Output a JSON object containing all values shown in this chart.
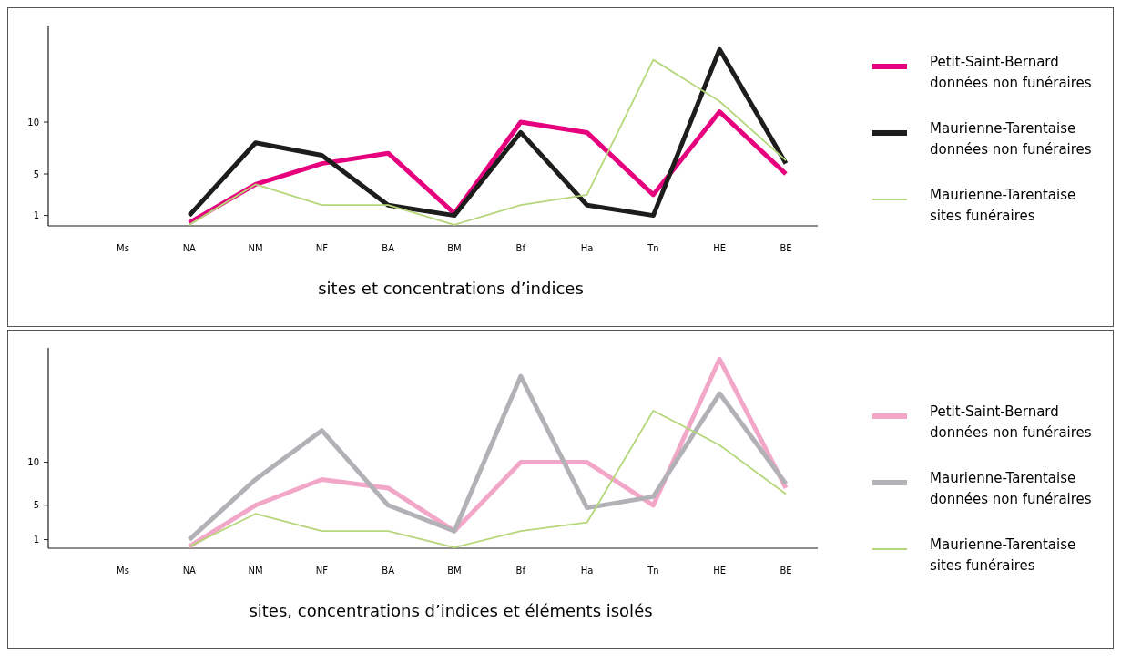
{
  "chart_data": [
    {
      "type": "line",
      "xlabel": "sites et concentrations d’indices",
      "categories": [
        "Ms",
        "NA",
        "NM",
        "NF",
        "BA",
        "BM",
        "Bf",
        "Ha",
        "Tn",
        "HE",
        "BE"
      ],
      "ylim": [
        0,
        19.3
      ],
      "yticks": [
        1,
        5,
        10
      ],
      "grid": false,
      "legend": "right",
      "series": [
        {
          "name": "Petit-Saint-Bernard\ndonnées non funéraires",
          "color": "#e6007e",
          "values": [
            null,
            0.3,
            4,
            6,
            7,
            1.2,
            10,
            9,
            3,
            11,
            5
          ]
        },
        {
          "name": "Maurienne-Tarentaise\ndonnées non funéraires",
          "color": "#1d1d1b",
          "values": [
            null,
            1,
            8,
            6.8,
            2,
            1,
            9,
            2,
            1,
            17,
            6
          ]
        },
        {
          "name": "Maurienne-Tarentaise\nsites funéraires",
          "color": "#b5d77a",
          "values": [
            null,
            0.1,
            4,
            2,
            2,
            0.1,
            2,
            3,
            16,
            12,
            6.3
          ]
        }
      ]
    },
    {
      "type": "line",
      "xlabel": "sites, concentrations d’indices et éléments isolés",
      "categories": [
        "Ms",
        "NA",
        "NM",
        "NF",
        "BA",
        "BM",
        "Bf",
        "Ha",
        "Tn",
        "HE",
        "BE"
      ],
      "ylim": [
        0,
        23.3
      ],
      "yticks": [
        1,
        5,
        10
      ],
      "grid": false,
      "legend": "right",
      "series": [
        {
          "name": "Petit-Saint-Bernard\ndonnées non funéraires",
          "color": "#f2a7c8",
          "values": [
            null,
            0.2,
            5,
            8,
            7,
            2,
            10,
            10,
            5,
            22,
            7
          ]
        },
        {
          "name": "Maurienne-Tarentaise\ndonnées non funéraires",
          "color": "#b2b2b6",
          "values": [
            null,
            1,
            8,
            13.7,
            5,
            2,
            20,
            4.7,
            6,
            18,
            7.5
          ]
        },
        {
          "name": "Maurienne-Tarentaise\nsites funéraires",
          "color": "#b5d77a",
          "values": [
            null,
            0.2,
            4,
            2,
            2,
            0.1,
            2,
            3,
            16,
            12,
            6.3
          ]
        }
      ]
    }
  ]
}
